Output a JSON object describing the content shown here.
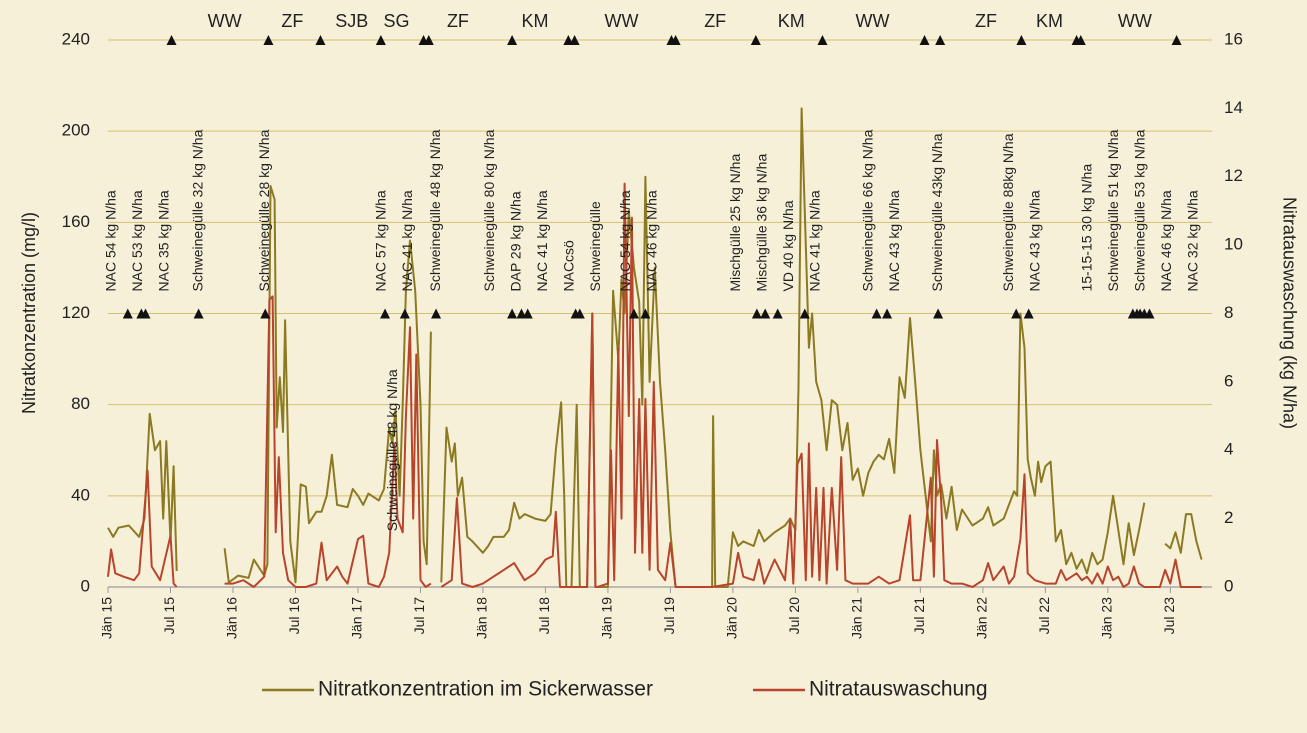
{
  "chart_data": {
    "type": "line",
    "y_label": "Nitratkonzentration (mg/l)",
    "y2_label": "Nitratauswaschung (kg N/ha)",
    "xlim": [
      0,
      106
    ],
    "xticks": [
      {
        "value": 0,
        "label": "Jän 15"
      },
      {
        "value": 6,
        "label": "Jul 15"
      },
      {
        "value": 12,
        "label": "Jän 16"
      },
      {
        "value": 18,
        "label": "Jul 16"
      },
      {
        "value": 24,
        "label": "Jän 17"
      },
      {
        "value": 30,
        "label": "Jul 17"
      },
      {
        "value": 36,
        "label": "Jän 18"
      },
      {
        "value": 42,
        "label": "Jul 18"
      },
      {
        "value": 48,
        "label": "Jän 19"
      },
      {
        "value": 54,
        "label": "Jul 19"
      },
      {
        "value": 60,
        "label": "Jän 20"
      },
      {
        "value": 66,
        "label": "Jul 20"
      },
      {
        "value": 72,
        "label": "Jän 21"
      },
      {
        "value": 78,
        "label": "Jul 21"
      },
      {
        "value": 84,
        "label": "Jän 22"
      },
      {
        "value": 90,
        "label": "Jul 22"
      },
      {
        "value": 96,
        "label": "Jän 23"
      },
      {
        "value": 102,
        "label": "Jul 23"
      }
    ],
    "ylim": [
      0,
      240
    ],
    "yticks": [
      0,
      40,
      80,
      120,
      160,
      200,
      240
    ],
    "y2lim": [
      0,
      16
    ],
    "y2ticks": [
      0,
      2,
      4,
      6,
      8,
      10,
      12,
      14,
      16
    ],
    "grid": true,
    "legend": "bottom",
    "series": [
      {
        "name": "Nitratkonzentration im Sickerwasser",
        "color": "#8b7a22",
        "axis": "y",
        "x": [
          0,
          0.5,
          1,
          2,
          3,
          3.5,
          4,
          4.5,
          5,
          5.3,
          5.6,
          6,
          6.3,
          6.6,
          9,
          11.2,
          11.6,
          12.5,
          13.5,
          14,
          15,
          15.3,
          15.6,
          16,
          16.2,
          16.5,
          16.8,
          17,
          17.5,
          18,
          18.5,
          19,
          19.3,
          20,
          20.5,
          21,
          21.5,
          22,
          23,
          23.5,
          24,
          24.5,
          25,
          26,
          26.5,
          27,
          27.3,
          27.6,
          28,
          28.3,
          28.6,
          29,
          29.5,
          30,
          30.3,
          30.6,
          31,
          31.5,
          32,
          32.5,
          33,
          33.3,
          33.6,
          34,
          34.5,
          35,
          36,
          36.5,
          37,
          38,
          38.5,
          39,
          39.5,
          40,
          41,
          42,
          42.5,
          43,
          43.5,
          43.8,
          44,
          44.5,
          45,
          45.3,
          46,
          46.5,
          46.8,
          47.5,
          48,
          48.5,
          49,
          49.3,
          49.6,
          50,
          50.5,
          51,
          51.3,
          51.6,
          52,
          52.5,
          53,
          53.5,
          54,
          54.5,
          58,
          58.1,
          58.3,
          59.5,
          60,
          60.5,
          61,
          62,
          62.5,
          63,
          64,
          65,
          65.5,
          66,
          66.3,
          66.6,
          67,
          67.3,
          67.6,
          68,
          68.5,
          69,
          69.5,
          70,
          70.5,
          71,
          71.5,
          72,
          72.5,
          73,
          73.5,
          74,
          74.5,
          75,
          75.5,
          76,
          76.5,
          77,
          77.5,
          78,
          78.5,
          79,
          79.3,
          79.6,
          80,
          80.5,
          81,
          81.5,
          82,
          83,
          84,
          84.5,
          85,
          86,
          86.5,
          87,
          87.3,
          87.6,
          88,
          88.3,
          88.6,
          89,
          89.3,
          89.6,
          90,
          90.5,
          91,
          91.5,
          92,
          92.5,
          93,
          93.5,
          94,
          94.5,
          95,
          95.5,
          96,
          96.5,
          97,
          97.5,
          98,
          98.5,
          99,
          99.5,
          100.5,
          101.5,
          102,
          102.5,
          103,
          103.5,
          104,
          104.5,
          105
        ],
        "values": [
          26,
          22,
          26,
          27,
          22,
          30,
          76,
          60,
          64,
          30,
          64,
          20,
          53,
          7,
          null,
          17,
          2,
          5,
          4,
          12,
          5,
          10,
          176,
          170,
          70,
          92,
          68,
          117,
          20,
          2,
          45,
          44,
          28,
          33,
          33,
          40,
          58,
          36,
          35,
          43,
          40,
          36,
          41,
          38,
          43,
          70,
          63,
          78,
          40,
          80,
          130,
          152,
          130,
          80,
          20,
          10,
          112,
          null,
          2,
          70,
          55,
          63,
          40,
          48,
          22,
          20,
          15,
          18,
          22,
          22,
          25,
          37,
          30,
          32,
          30,
          29,
          32,
          60,
          81,
          40,
          0,
          0,
          80,
          0,
          0,
          120,
          0,
          0,
          0,
          130,
          100,
          135,
          120,
          165,
          140,
          125,
          80,
          180,
          90,
          140,
          90,
          60,
          24,
          0,
          0,
          75,
          0,
          0,
          24,
          18,
          20,
          18,
          25,
          20,
          24,
          27,
          30,
          25,
          88,
          210,
          150,
          105,
          120,
          90,
          82,
          60,
          82,
          80,
          60,
          72,
          47,
          52,
          40,
          50,
          55,
          58,
          56,
          65,
          50,
          92,
          83,
          118,
          90,
          60,
          40,
          20,
          60,
          40,
          45,
          30,
          44,
          25,
          34,
          27,
          30,
          35,
          27,
          30,
          36,
          42,
          40,
          120,
          105,
          56,
          48,
          40,
          55,
          46,
          53,
          55,
          20,
          25,
          10,
          15,
          8,
          12,
          6,
          15,
          10,
          12,
          24,
          40,
          25,
          10,
          28,
          14,
          25,
          37,
          null,
          19,
          17,
          24,
          15,
          32,
          32,
          20,
          12
        ]
      },
      {
        "name": "Nitratauswaschung",
        "color": "#b9442c",
        "axis": "y2",
        "x": [
          0,
          0.3,
          0.7,
          1.5,
          2.5,
          3,
          3.8,
          4.2,
          5,
          6,
          6.3,
          6.6,
          9,
          11.2,
          12,
          13,
          14,
          15,
          15.5,
          15.8,
          16.1,
          16.4,
          16.8,
          17.3,
          18,
          19,
          20,
          20.5,
          21,
          22,
          22.5,
          23,
          24,
          24.5,
          25,
          26,
          26.5,
          27,
          27.5,
          27.8,
          28.3,
          28.6,
          29,
          29.3,
          29.6,
          30,
          30.5,
          31,
          31.5,
          32,
          32.5,
          33,
          33.5,
          34,
          35,
          36,
          37,
          38,
          39,
          40,
          41,
          42,
          42.7,
          43,
          43.4,
          44,
          45,
          46,
          46.5,
          46.8,
          47,
          48,
          48.3,
          48.6,
          49,
          49.3,
          49.6,
          50,
          50.3,
          50.6,
          51,
          51.3,
          51.6,
          52,
          52.4,
          52.8,
          53.5,
          54,
          54.5,
          58,
          60,
          60.5,
          61,
          62,
          62.5,
          63,
          64,
          65,
          65.5,
          65.8,
          66.2,
          66.6,
          67,
          67.3,
          67.6,
          68,
          68.3,
          68.7,
          69,
          69.5,
          70,
          70.4,
          70.8,
          71.5,
          72,
          73,
          74,
          75,
          76,
          77,
          77.3,
          78,
          79,
          79.3,
          79.6,
          80,
          80.3,
          81,
          82,
          83,
          84,
          84.5,
          85,
          86,
          86.5,
          87,
          87.6,
          88,
          88.3,
          89,
          90,
          91,
          91.5,
          92,
          93,
          93.5,
          94,
          94.5,
          95,
          95.5,
          96,
          96.5,
          97,
          97.5,
          98,
          98.5,
          99,
          99.5,
          101,
          101.5,
          102,
          102.5,
          103,
          104,
          105
        ],
        "values": [
          0.3,
          1.1,
          0.4,
          0.3,
          0.2,
          0.4,
          3.4,
          0.6,
          0.2,
          1.5,
          0.1,
          0,
          null,
          0.1,
          0.1,
          0.2,
          0,
          0.3,
          8.4,
          8.5,
          1.6,
          3.8,
          1.0,
          0.2,
          0,
          0,
          0.1,
          1.3,
          0.2,
          0.6,
          0.3,
          0.1,
          1.4,
          1.5,
          0.1,
          0,
          0.3,
          1.0,
          4.2,
          2.0,
          1.6,
          5.0,
          7.6,
          2.0,
          6.8,
          0.2,
          0,
          0.1,
          null,
          0,
          0.1,
          0.2,
          2.6,
          0.1,
          0,
          0.1,
          0.3,
          0.5,
          0.7,
          0.2,
          0.4,
          0.8,
          0.9,
          2.2,
          0,
          0,
          0,
          0,
          8,
          0,
          0,
          0.1,
          4,
          0.2,
          7,
          2,
          11.8,
          5,
          10.8,
          1,
          5.5,
          1,
          5.5,
          0.5,
          6,
          0.5,
          0.2,
          1.3,
          0,
          0,
          0.1,
          1.0,
          0.3,
          0.2,
          0.8,
          0.1,
          0.8,
          0.2,
          2.0,
          0.1,
          3.6,
          3.9,
          0.2,
          4.2,
          0.3,
          2.9,
          0.2,
          2.9,
          0.1,
          2.9,
          0.5,
          3.8,
          0.2,
          0.1,
          0.1,
          0.1,
          0.3,
          0.1,
          0.2,
          2.1,
          0.2,
          0.2,
          3.2,
          0.3,
          4.3,
          2.5,
          0.2,
          0.1,
          0.1,
          0,
          0.2,
          0.7,
          0.2,
          0.6,
          0.1,
          0.3,
          1.4,
          3.3,
          0.4,
          0.2,
          0.1,
          0.1,
          0.5,
          0.2,
          0.4,
          0.2,
          0.3,
          0.1,
          0.4,
          0.1,
          0.6,
          0.2,
          0.3,
          0,
          0.1,
          0.6,
          0.1,
          0,
          0,
          0.5,
          0.1,
          0.8,
          0,
          0,
          0
        ]
      }
    ],
    "crop_marker_y": 240,
    "crop_markers": [
      6.1,
      15.4,
      20.4,
      26.2,
      30.3,
      30.8,
      38.8,
      44.2,
      44.8,
      54.1,
      54.5,
      62.2,
      68.6,
      78.4,
      79.9,
      87.7,
      93.0,
      93.4,
      102.6
    ],
    "crops": [
      {
        "text": "WW",
        "x": 11.2
      },
      {
        "text": "ZF",
        "x": 17.7
      },
      {
        "text": "SJB",
        "x": 23.4
      },
      {
        "text": "SG",
        "x": 27.7
      },
      {
        "text": "ZF",
        "x": 33.6
      },
      {
        "text": "KM",
        "x": 41.0
      },
      {
        "text": "WW",
        "x": 49.3
      },
      {
        "text": "ZF",
        "x": 58.3
      },
      {
        "text": "KM",
        "x": 65.6
      },
      {
        "text": "WW",
        "x": 73.4
      },
      {
        "text": "ZF",
        "x": 84.3
      },
      {
        "text": "KM",
        "x": 90.4
      },
      {
        "text": "WW",
        "x": 98.6
      }
    ],
    "fertilizer_marker_y": 120,
    "fertilizers": [
      {
        "text": "NAC 54 kg N/ha",
        "x": 1.9
      },
      {
        "text": "NAC 53 kg N/ha",
        "x": 3.2
      },
      {
        "text": "NAC 35 kg N/ha",
        "x": 3.6
      },
      {
        "text": "Schweinegülle 32 kg N/ha",
        "x": 8.7
      },
      {
        "text": "Schweinegülle 28 kg N/ha",
        "x": 15.1
      },
      {
        "text": "NAC 57 kg N/ha",
        "x": 26.6
      },
      {
        "text": "NAC 41 kg N/ha",
        "x": 28.5
      },
      {
        "text": "Schweinegülle 48 kg N/ha",
        "x": 31.5
      },
      {
        "text": "Schweinegülle 80 kg N/ha",
        "x": 38.8
      },
      {
        "text": "DAP 29 kg N/ha",
        "x": 39.7
      },
      {
        "text": "NAC 41 kg N/ha",
        "x": 40.3
      },
      {
        "text": "NACcsö",
        "x": 44.9
      },
      {
        "text": "Schweinegülle",
        "x": 45.3
      },
      {
        "text": "NAC 54 kg N/ha",
        "x": 50.5
      },
      {
        "text": "NAC 46 kg N/ha",
        "x": 51.6
      },
      {
        "text": "Mischgülle 25 kg N/ha",
        "x": 62.3
      },
      {
        "text": "Mischgülle 36 kg N/ha",
        "x": 63.1
      },
      {
        "text": "VD 40 kg N/ha",
        "x": 64.3
      },
      {
        "text": "NAC 41 kg N/ha",
        "x": 66.9
      },
      {
        "text": "Schweinegülle 66 kg N/ha",
        "x": 73.8
      },
      {
        "text": "NAC 43 kg N/ha",
        "x": 74.8
      },
      {
        "text": "Schweinegülle 43kg N/ha",
        "x": 79.7
      },
      {
        "text": "Schweinegülle 88kg N/ha",
        "x": 87.2
      },
      {
        "text": "NAC 43 kg N/ha",
        "x": 88.4
      },
      {
        "text": "15-15-15 30 kg N/ha",
        "x": 98.4
      },
      {
        "text": "Schweinegülle 51 kg N/ha",
        "x": 98.8
      },
      {
        "text": "Schweinegülle 53 kg N/ha",
        "x": 99.1
      },
      {
        "text": "NAC 46 kg N/ha",
        "x": 99.5
      },
      {
        "text": "NAC 32 kg N/ha",
        "x": 100.0
      }
    ],
    "annotations": [
      {
        "text": "Schweinegülle 48 kg N/ha",
        "x": 27.4,
        "y": 60
      }
    ]
  }
}
